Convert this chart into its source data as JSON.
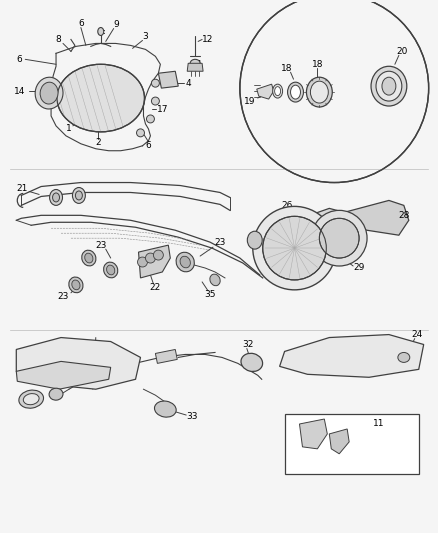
{
  "bg_color": "#f0f0f0",
  "fig_width": 4.38,
  "fig_height": 5.33,
  "dpi": 100,
  "lc": "#404040",
  "fs": 6.5,
  "tc": "#000000"
}
